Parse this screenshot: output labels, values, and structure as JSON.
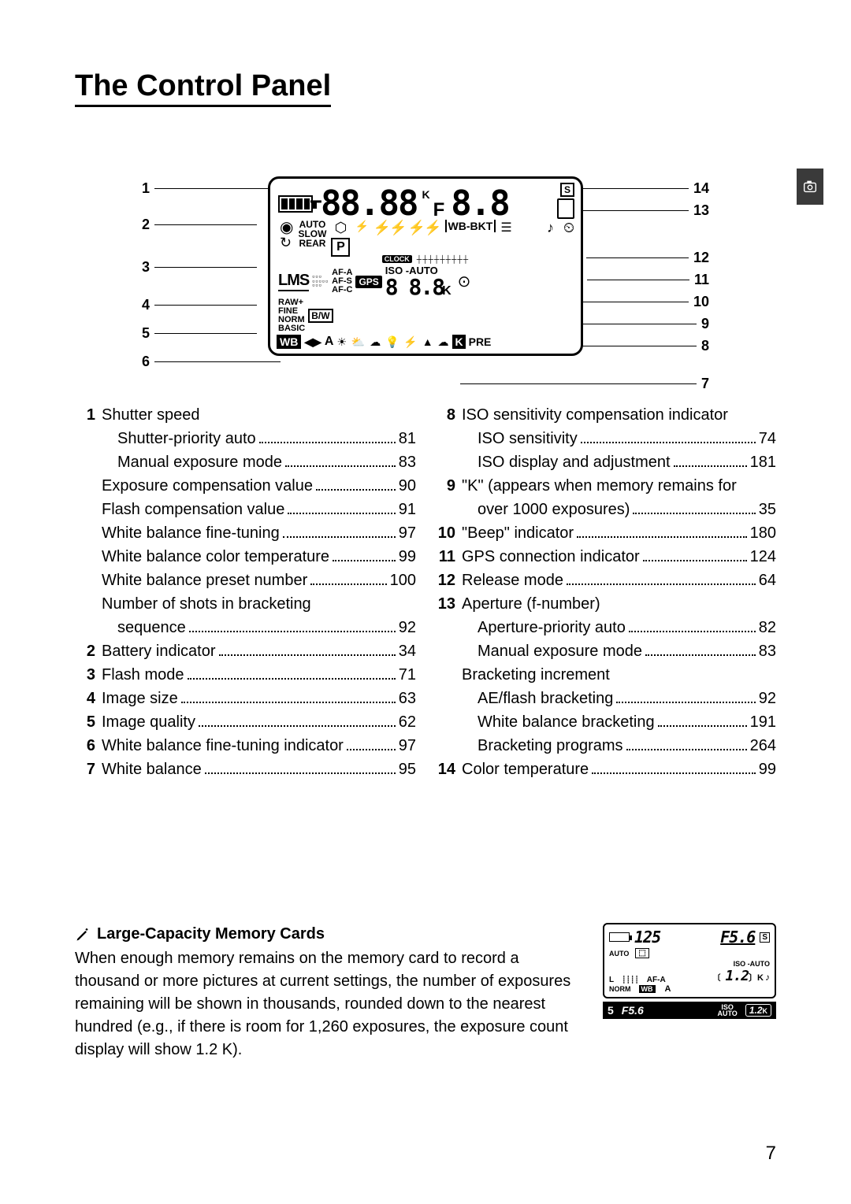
{
  "title": "The Control Panel",
  "page_number": "7",
  "diagram_leaders_left": [
    "1",
    "2",
    "3",
    "4",
    "5",
    "6"
  ],
  "diagram_leaders_right": [
    "14",
    "13",
    "12",
    "11",
    "10",
    "9",
    "8",
    "7"
  ],
  "panel": {
    "big_segment_left": "-88.88",
    "big_segment_right": "F8.8",
    "k_superscript": "K",
    "s_box": "S",
    "auto_slow_rear": "AUTO\nSLOW\nREAR",
    "p_box": "P",
    "wb_bkt": "WB-BKT",
    "clock": "CLOCK",
    "lms": "LMS",
    "af_modes": "AF-A\nAF-S\nAF-C",
    "gps": "GPS",
    "iso_auto": "ISO -AUTO",
    "seg_mid": "8 8.8",
    "k_right": "K",
    "quality_stack": "RAW+\nFINE\nNORM\nBASIC",
    "bw": "B/W",
    "wb": "WB",
    "arrows": "◀▶",
    "a_label": "A",
    "pre": "PRE",
    "k_box": "K"
  },
  "legend_left": [
    {
      "n": "1",
      "label": "Shutter speed",
      "page": ""
    },
    {
      "n": "",
      "label": "Shutter-priority auto",
      "page": "81",
      "indent": true
    },
    {
      "n": "",
      "label": "Manual exposure mode",
      "page": "83",
      "indent": true
    },
    {
      "n": "",
      "label": "Exposure compensation value",
      "page": "90"
    },
    {
      "n": "",
      "label": "Flash compensation value",
      "page": "91"
    },
    {
      "n": "",
      "label": "White balance fine-tuning",
      "page": "97"
    },
    {
      "n": "",
      "label": "White balance color temperature",
      "page": "99"
    },
    {
      "n": "",
      "label": "White balance preset number",
      "page": "100"
    },
    {
      "n": "",
      "label": "Number of shots in bracketing",
      "page": ""
    },
    {
      "n": "",
      "label": "sequence",
      "page": "92",
      "indent": true
    },
    {
      "n": "2",
      "label": "Battery indicator",
      "page": "34"
    },
    {
      "n": "3",
      "label": "Flash mode",
      "page": "71"
    },
    {
      "n": "4",
      "label": "Image size",
      "page": "63"
    },
    {
      "n": "5",
      "label": "Image quality",
      "page": "62"
    },
    {
      "n": "6",
      "label": "White balance fine-tuning indicator",
      "page": "97"
    },
    {
      "n": "7",
      "label": "White balance",
      "page": "95"
    }
  ],
  "legend_right": [
    {
      "n": "8",
      "label": "ISO sensitivity compensation indicator",
      "page": ""
    },
    {
      "n": "",
      "label": "ISO sensitivity",
      "page": "74",
      "indent": true
    },
    {
      "n": "",
      "label": "ISO display and adjustment",
      "page": "181",
      "indent": true
    },
    {
      "n": "9",
      "label": "\"K\" (appears when memory remains for",
      "page": ""
    },
    {
      "n": "",
      "label": "over 1000 exposures)",
      "page": "35",
      "indent": true
    },
    {
      "n": "10",
      "label": "\"Beep\" indicator",
      "page": "180"
    },
    {
      "n": "11",
      "label": "GPS connection indicator",
      "page": "124"
    },
    {
      "n": "12",
      "label": "Release mode",
      "page": "64"
    },
    {
      "n": "13",
      "label": "Aperture (f-number)",
      "page": ""
    },
    {
      "n": "",
      "label": "Aperture-priority auto",
      "page": "82",
      "indent": true
    },
    {
      "n": "",
      "label": "Manual exposure mode",
      "page": "83",
      "indent": true
    },
    {
      "n": "",
      "label": "Bracketing increment",
      "page": ""
    },
    {
      "n": "",
      "label": "AE/flash bracketing",
      "page": "92",
      "indent": true
    },
    {
      "n": "",
      "label": "White balance bracketing",
      "page": "191",
      "indent": true
    },
    {
      "n": "",
      "label": "Bracketing programs",
      "page": "264",
      "indent": true
    },
    {
      "n": "14",
      "label": "Color temperature",
      "page": "99"
    }
  ],
  "note": {
    "heading": "Large-Capacity Memory Cards",
    "body": "When enough memory remains on the memory card to record a thousand or more pictures at current settings, the number of exposures remaining will be shown in thousands, rounded down to the nearest hundred (e.g., if there is room for 1,260 exposures, the exposure count display will show 1.2 K)."
  },
  "mini": {
    "shutter": "125",
    "aperture": "F5.6",
    "s": "S",
    "auto": "AUTO",
    "afa": "AF-A",
    "isoauto": "ISO -AUTO",
    "count": "1.2",
    "k": "K",
    "norm": "NORM",
    "wb": "WB",
    "a": "A",
    "bot_page": "5",
    "bot_f": "F5.6",
    "bot_iso": "ISO\nAUTO",
    "bot_count": "1.2",
    "bot_k": "K"
  }
}
